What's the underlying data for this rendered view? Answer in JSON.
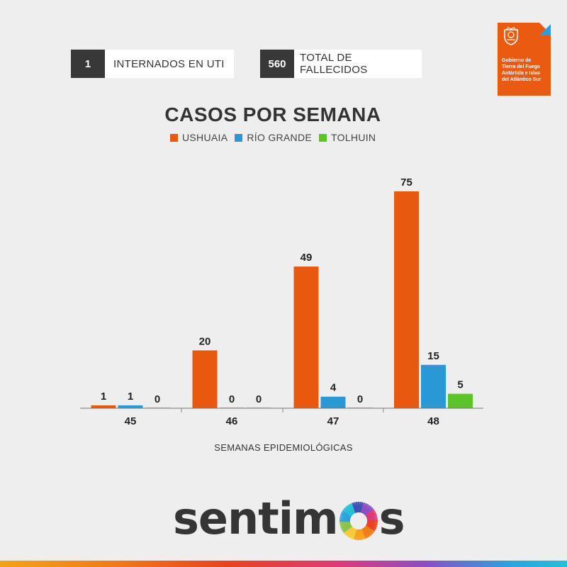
{
  "stats": {
    "uti": {
      "value": "1",
      "label": "INTERNADOS EN UTI"
    },
    "fallecidos": {
      "value": "560",
      "label": "TOTAL DE FALLECIDOS"
    }
  },
  "logo": {
    "org_lines": [
      "Gobierno de",
      "Tierra del Fuego",
      "Antártida e Islas",
      "del Atlántico Sur"
    ],
    "color": "#ea5a10"
  },
  "brand": {
    "pre": "sentim",
    "post": "s"
  },
  "colors": {
    "ushuaia": "#e8580f",
    "rio_grande": "#2b98d6",
    "tolhuin": "#5cc32a"
  },
  "chart_data": {
    "type": "bar",
    "title": "CASOS POR SEMANA",
    "xlabel": "SEMANAS EPIDEMIOLÓGICAS",
    "ylabel": "",
    "categories": [
      "45",
      "46",
      "47",
      "48"
    ],
    "series": [
      {
        "name": "USHUAIA",
        "color": "#e8580f",
        "values": [
          1,
          20,
          49,
          75
        ]
      },
      {
        "name": "RÍO GRANDE",
        "color": "#2b98d6",
        "values": [
          1,
          0,
          4,
          15
        ]
      },
      {
        "name": "TOLHUIN",
        "color": "#5cc32a",
        "values": [
          0,
          0,
          0,
          5
        ]
      }
    ],
    "ylim": [
      0,
      75
    ],
    "grid": false,
    "legend": "top"
  }
}
